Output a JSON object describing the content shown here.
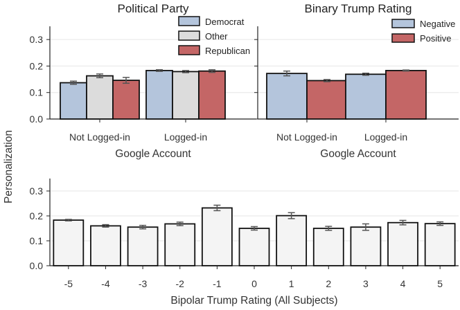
{
  "shared_ylabel": "Personalization",
  "colors": {
    "democrat": "#b4c5dc",
    "other": "#dcdcdc",
    "republican": "#c46666",
    "negative": "#b4c5dc",
    "positive": "#c46666",
    "all": "#f4f4f4",
    "bar_edge": "#111111",
    "error_bar": "#555555",
    "grid": "#e6e6e6",
    "axis": "#222222"
  },
  "chart_data": [
    {
      "id": "political-party",
      "type": "bar",
      "title": "Political Party",
      "xlabel": "Google Account",
      "ylabel": "Personalization",
      "categories": [
        "Not Logged-in",
        "Logged-in"
      ],
      "series": [
        {
          "name": "Democrat",
          "color": "#b4c5dc",
          "values": [
            0.137,
            0.183
          ],
          "errors": [
            0.006,
            0.003
          ]
        },
        {
          "name": "Other",
          "color": "#dcdcdc",
          "values": [
            0.163,
            0.179
          ],
          "errors": [
            0.007,
            0.004
          ]
        },
        {
          "name": "Republican",
          "color": "#c46666",
          "values": [
            0.146,
            0.181
          ],
          "errors": [
            0.011,
            0.005
          ]
        }
      ],
      "ylim": [
        0,
        0.35
      ],
      "yticks": [
        0.0,
        0.1,
        0.2,
        0.3
      ],
      "ytick_labels": [
        "0.0",
        "0.1",
        "0.2",
        "0.3"
      ],
      "grid": true,
      "legend": "top-right"
    },
    {
      "id": "binary-trump-rating",
      "type": "bar",
      "title": "Binary Trump Rating",
      "xlabel": "Google Account",
      "categories": [
        "Not Logged-in",
        "Logged-in"
      ],
      "series": [
        {
          "name": "Negative",
          "color": "#b4c5dc",
          "values": [
            0.172,
            0.169
          ],
          "errors": [
            0.009,
            0.004
          ]
        },
        {
          "name": "Positive",
          "color": "#c46666",
          "values": [
            0.145,
            0.183
          ],
          "errors": [
            0.004,
            0.002
          ]
        }
      ],
      "ylim": [
        0,
        0.35
      ],
      "yticks": [
        0.0,
        0.1,
        0.2,
        0.3
      ],
      "grid": true,
      "legend": "top-right"
    },
    {
      "id": "bipolar-trump-rating",
      "type": "bar",
      "xlabel": "Bipolar Trump Rating (All Subjects)",
      "ylabel": "Personalization",
      "categories": [
        "-5",
        "-4",
        "-3",
        "-2",
        "-1",
        "0",
        "1",
        "2",
        "3",
        "4",
        "5"
      ],
      "series": [
        {
          "color": "#f4f4f4",
          "values": [
            0.183,
            0.16,
            0.155,
            0.168,
            0.232,
            0.15,
            0.201,
            0.15,
            0.155,
            0.173,
            0.169
          ],
          "errors": [
            0.003,
            0.005,
            0.007,
            0.007,
            0.011,
            0.007,
            0.012,
            0.008,
            0.013,
            0.009,
            0.007
          ]
        }
      ],
      "ylim": [
        0,
        0.35
      ],
      "yticks": [
        0.0,
        0.1,
        0.2,
        0.3
      ],
      "ytick_labels": [
        "0.0",
        "0.1",
        "0.2",
        "0.3"
      ],
      "grid": true
    }
  ]
}
